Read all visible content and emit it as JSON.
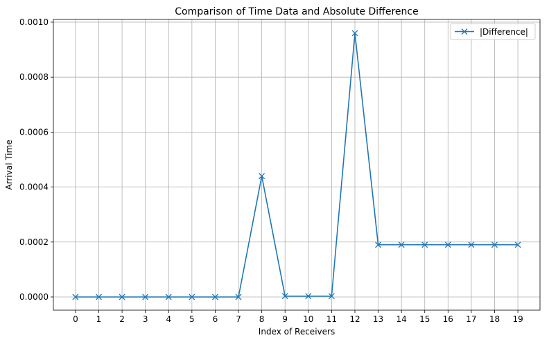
{
  "chart_data": {
    "type": "line",
    "title": "Comparison of Time Data and Absolute Difference",
    "xlabel": "Index of Receivers",
    "ylabel": "Arrival Time",
    "x": [
      0,
      1,
      2,
      3,
      4,
      5,
      6,
      7,
      8,
      9,
      10,
      11,
      12,
      13,
      14,
      15,
      16,
      17,
      18,
      19
    ],
    "x_tick_labels": [
      "0",
      "1",
      "2",
      "3",
      "4",
      "5",
      "6",
      "7",
      "8",
      "9",
      "10",
      "11",
      "12",
      "13",
      "14",
      "15",
      "16",
      "17",
      "18",
      "19"
    ],
    "y_ticks": [
      0,
      0.0002,
      0.0004,
      0.0006,
      0.0008,
      0.001
    ],
    "y_tick_labels": [
      "0.0000",
      "0.0002",
      "0.0004",
      "0.0006",
      "0.0008",
      "0.0010"
    ],
    "xlim": [
      -0.95,
      19.95
    ],
    "ylim": [
      -4.8e-05,
      0.00101
    ],
    "grid": true,
    "legend_position": "top-right",
    "series": [
      {
        "name": "|Difference|",
        "color": "#1f77b4",
        "marker": "x",
        "values": [
          0,
          0,
          0,
          0,
          0,
          0,
          0,
          0,
          0.00044,
          3e-06,
          3e-06,
          3e-06,
          0.00096,
          0.00019,
          0.00019,
          0.00019,
          0.00019,
          0.00019,
          0.00019,
          0.00019
        ]
      }
    ]
  }
}
